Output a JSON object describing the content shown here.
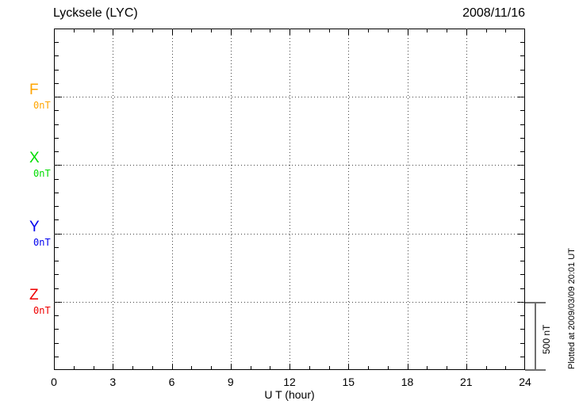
{
  "header": {
    "title": "Lycksele (LYC)",
    "date": "2008/11/16"
  },
  "chart_data": {
    "type": "line",
    "title": "Lycksele (LYC)",
    "date": "2008/11/16",
    "xlabel": "U T (hour)",
    "xlim": [
      0,
      24
    ],
    "x_major_ticks": [
      0,
      3,
      6,
      9,
      12,
      15,
      18,
      21,
      24
    ],
    "x_minor_step_hours": 1,
    "grid": "dotted",
    "y_division_nT": 500,
    "y_minor_tick_nT": 100,
    "channels": [
      {
        "name": "F",
        "offset_label": "0nT",
        "color": "#FFA500",
        "values": []
      },
      {
        "name": "X",
        "offset_label": "0nT",
        "color": "#00DD00",
        "values": []
      },
      {
        "name": "Y",
        "offset_label": "0nT",
        "color": "#0000EE",
        "values": []
      },
      {
        "name": "Z",
        "offset_label": "0nT",
        "color": "#EE0000",
        "values": []
      }
    ],
    "series_note": "no data traces plotted (empty magnetogram, baselines at 0 nT)",
    "scale_bar": {
      "label": "500 nT",
      "nT": 500
    },
    "plotted_at": "Plotted at 2009/03/09 20:01 UT"
  }
}
